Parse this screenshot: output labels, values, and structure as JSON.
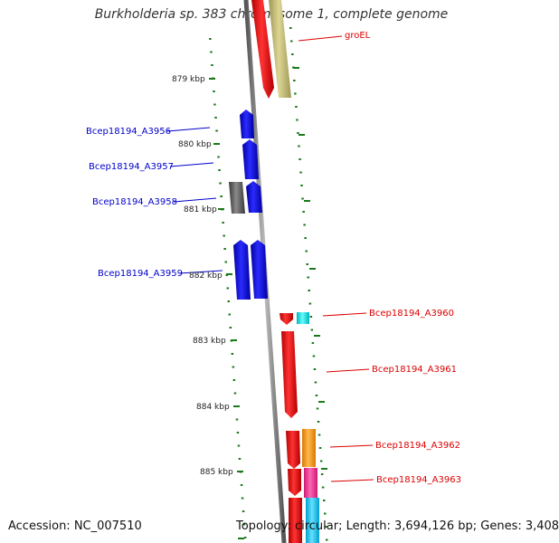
{
  "title": "Burkholderia sp. 383 chromosome 1, complete genome",
  "footer": {
    "accession": "Accession: NC_007510",
    "stats": "Topology: circular; Length: 3,694,126 bp; Genes: 3,408"
  },
  "ticks": [
    {
      "label": "879 kbp"
    },
    {
      "label": "880 kbp"
    },
    {
      "label": "881 kbp"
    },
    {
      "label": "882 kbp"
    },
    {
      "label": "883 kbp"
    },
    {
      "label": "884 kbp"
    },
    {
      "label": "885 kbp"
    }
  ],
  "genes_left": [
    {
      "name": "Bcep18194_A3956"
    },
    {
      "name": "Bcep18194_A3957"
    },
    {
      "name": "Bcep18194_A3958"
    },
    {
      "name": "Bcep18194_A3959"
    }
  ],
  "genes_right": [
    {
      "name": "groEL"
    },
    {
      "name": "Bcep18194_A3960"
    },
    {
      "name": "Bcep18194_A3961"
    },
    {
      "name": "Bcep18194_A3962"
    },
    {
      "name": "Bcep18194_A3963"
    }
  ],
  "colors": {
    "forward": "#ee0000",
    "reverse": "#0000ee",
    "olive": "#c8c07a",
    "grey": "#666666",
    "cyan": "#00e5ee",
    "orange": "#ff9900",
    "pink": "#ff3399",
    "sky": "#00ccff",
    "tick": "#1a7a1a"
  }
}
